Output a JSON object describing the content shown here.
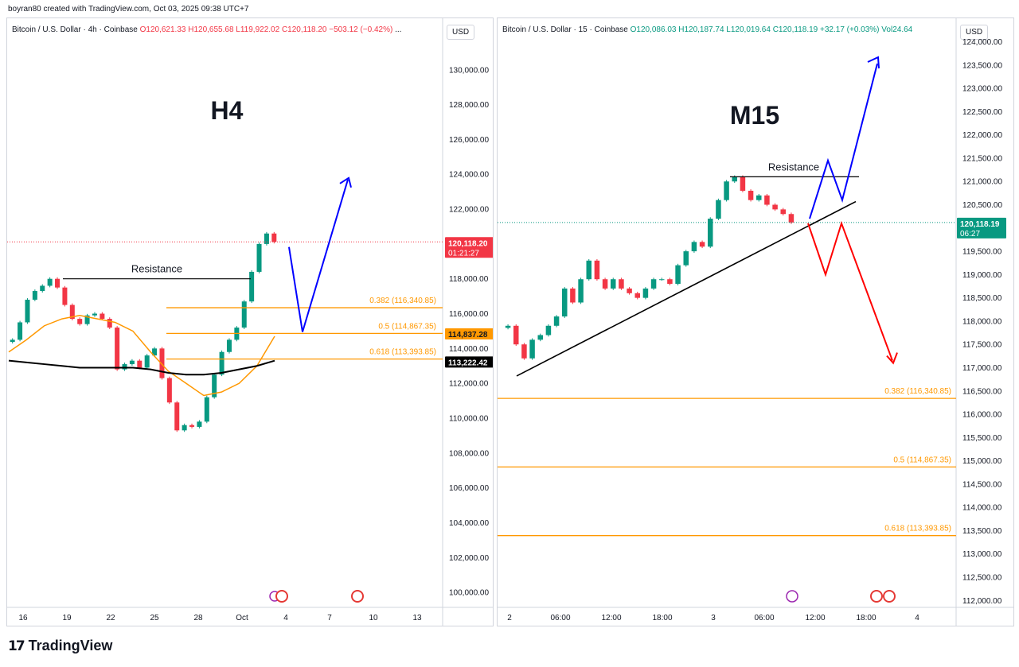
{
  "header": {
    "author_line": "boyran80 created with TradingView.com, Oct 03, 2025 09:38 UTC+7"
  },
  "footer": {
    "brand": "TradingView"
  },
  "colors": {
    "up": "#089981",
    "down": "#f23645",
    "fib": "#ff9800",
    "blue_path": "#0000ff",
    "red_path": "#ff0000",
    "ema": "#ff9800",
    "sma": "#000000"
  },
  "chart_data": [
    {
      "id": "h4",
      "type": "candlestick",
      "title": "H4",
      "legend": {
        "symbol": "Bitcoin / U.S. Dollar · 4h · Coinbase",
        "o": "O120,621.33",
        "h": "H120,655.68",
        "l": "L119,922.02",
        "c": "C120,118.20",
        "chg": "−503.12 (−0.42%)",
        "suffix": "..."
      },
      "currency": "USD",
      "ylim": [
        99000,
        132500
      ],
      "y_ticks": [
        "130,000.00",
        "128,000.00",
        "126,000.00",
        "124,000.00",
        "122,000.00",
        "120,000.00",
        "118,000.00",
        "116,000.00",
        "114,000.00",
        "112,000.00",
        "110,000.00",
        "108,000.00",
        "106,000.00",
        "104,000.00",
        "102,000.00",
        "100,000.00"
      ],
      "y_tick_values": [
        130000,
        128000,
        126000,
        124000,
        122000,
        120000,
        118000,
        116000,
        114000,
        112000,
        110000,
        108000,
        106000,
        104000,
        102000,
        100000
      ],
      "x_tick_labels": [
        "16",
        "19",
        "22",
        "25",
        "28",
        "Oct",
        "4",
        "7",
        "10",
        "13"
      ],
      "price_label": {
        "value": 120118.2,
        "text": "120,118.20",
        "countdown": "01:21:27"
      },
      "extra_labels": [
        {
          "value": 114837.28,
          "text": "114,837.28",
          "style": "orange"
        },
        {
          "value": 113222.42,
          "text": "113,222.42",
          "style": "black"
        }
      ],
      "annotations": {
        "resistance": {
          "text": "Resistance",
          "price": 118000
        },
        "fib": [
          {
            "label": "0.382 (116,340.85)",
            "price": 116340.85
          },
          {
            "label": "0.5 (114,867.35)",
            "price": 114867.35
          },
          {
            "label": "0.618 (113,393.85)",
            "price": 113393.85
          }
        ],
        "projection_prices": [
          118000,
          115500,
          123700
        ]
      },
      "series": [
        {
          "name": "EMA",
          "kind": "line",
          "values": [
            113800,
            114500,
            115300,
            115700,
            115900,
            115700,
            115500,
            115000,
            113800,
            112700,
            112000,
            111300,
            111500,
            112000,
            113000,
            114700
          ]
        },
        {
          "name": "SMA",
          "kind": "line",
          "values": [
            113300,
            113200,
            113100,
            113000,
            112900,
            112900,
            112900,
            112900,
            112800,
            112600,
            112500,
            112500,
            112600,
            112800,
            113000,
            113300
          ]
        }
      ],
      "candles_close": [
        114500,
        115500,
        116800,
        117300,
        117600,
        118000,
        117500,
        116500,
        115700,
        115400,
        115900,
        116000,
        115700,
        115200,
        112800,
        113100,
        113300,
        112900,
        113600,
        114000,
        112300,
        110900,
        109300,
        109600,
        109500,
        109800,
        111200,
        112500,
        113800,
        114500,
        115200,
        116700,
        118400,
        120000,
        120600,
        120118
      ]
    },
    {
      "id": "m15",
      "type": "candlestick",
      "title": "M15",
      "legend": {
        "symbol": "Bitcoin / U.S. Dollar · 15 · Coinbase",
        "o": "O120,086.03",
        "h": "H120,187.74",
        "l": "L120,019.64",
        "c": "C120,118.19",
        "chg": "+32.17 (+0.03%)",
        "vol": "Vol24.64"
      },
      "currency": "USD",
      "ylim": [
        111800,
        124300
      ],
      "y_ticks": [
        "124,000.00",
        "123,500.00",
        "123,000.00",
        "122,500.00",
        "122,000.00",
        "121,500.00",
        "121,000.00",
        "120,500.00",
        "120,000.00",
        "119,500.00",
        "119,000.00",
        "118,500.00",
        "118,000.00",
        "117,500.00",
        "117,000.00",
        "116,500.00",
        "116,000.00",
        "115,500.00",
        "115,000.00",
        "114,500.00",
        "114,000.00",
        "113,500.00",
        "113,000.00",
        "112,500.00",
        "112,000.00"
      ],
      "y_tick_values": [
        124000,
        123500,
        123000,
        122500,
        122000,
        121500,
        121000,
        120500,
        120000,
        119500,
        119000,
        118500,
        118000,
        117500,
        117000,
        116500,
        116000,
        115500,
        115000,
        114500,
        114000,
        113500,
        113000,
        112500,
        112000
      ],
      "x_tick_labels": [
        "2",
        "06:00",
        "12:00",
        "18:00",
        "3",
        "06:00",
        "12:00",
        "18:00",
        "4"
      ],
      "price_label": {
        "value": 120118.19,
        "text": "120,118.19",
        "countdown": "06:27"
      },
      "annotations": {
        "resistance": {
          "text": "Resistance",
          "price": 121100
        },
        "trendline_prices": [
          117300,
          120500
        ],
        "fib": [
          {
            "label": "0.382 (116,340.85)",
            "price": 116340.85
          },
          {
            "label": "0.5 (114,867.35)",
            "price": 114867.35
          },
          {
            "label": "0.618 (113,393.85)",
            "price": 113393.85
          }
        ],
        "blue_path_prices": [
          120200,
          121450,
          120600,
          123600
        ],
        "red_path_prices": [
          120100,
          119000,
          120100,
          117050
        ]
      },
      "candles_close": [
        117900,
        117500,
        117200,
        117600,
        117700,
        117900,
        118100,
        118700,
        118400,
        118900,
        119300,
        118900,
        118700,
        118900,
        118700,
        118600,
        118500,
        118700,
        118900,
        118900,
        118800,
        119200,
        119500,
        119700,
        119600,
        120200,
        120600,
        121000,
        121100,
        120800,
        120600,
        120700,
        120500,
        120400,
        120300,
        120118
      ]
    }
  ]
}
